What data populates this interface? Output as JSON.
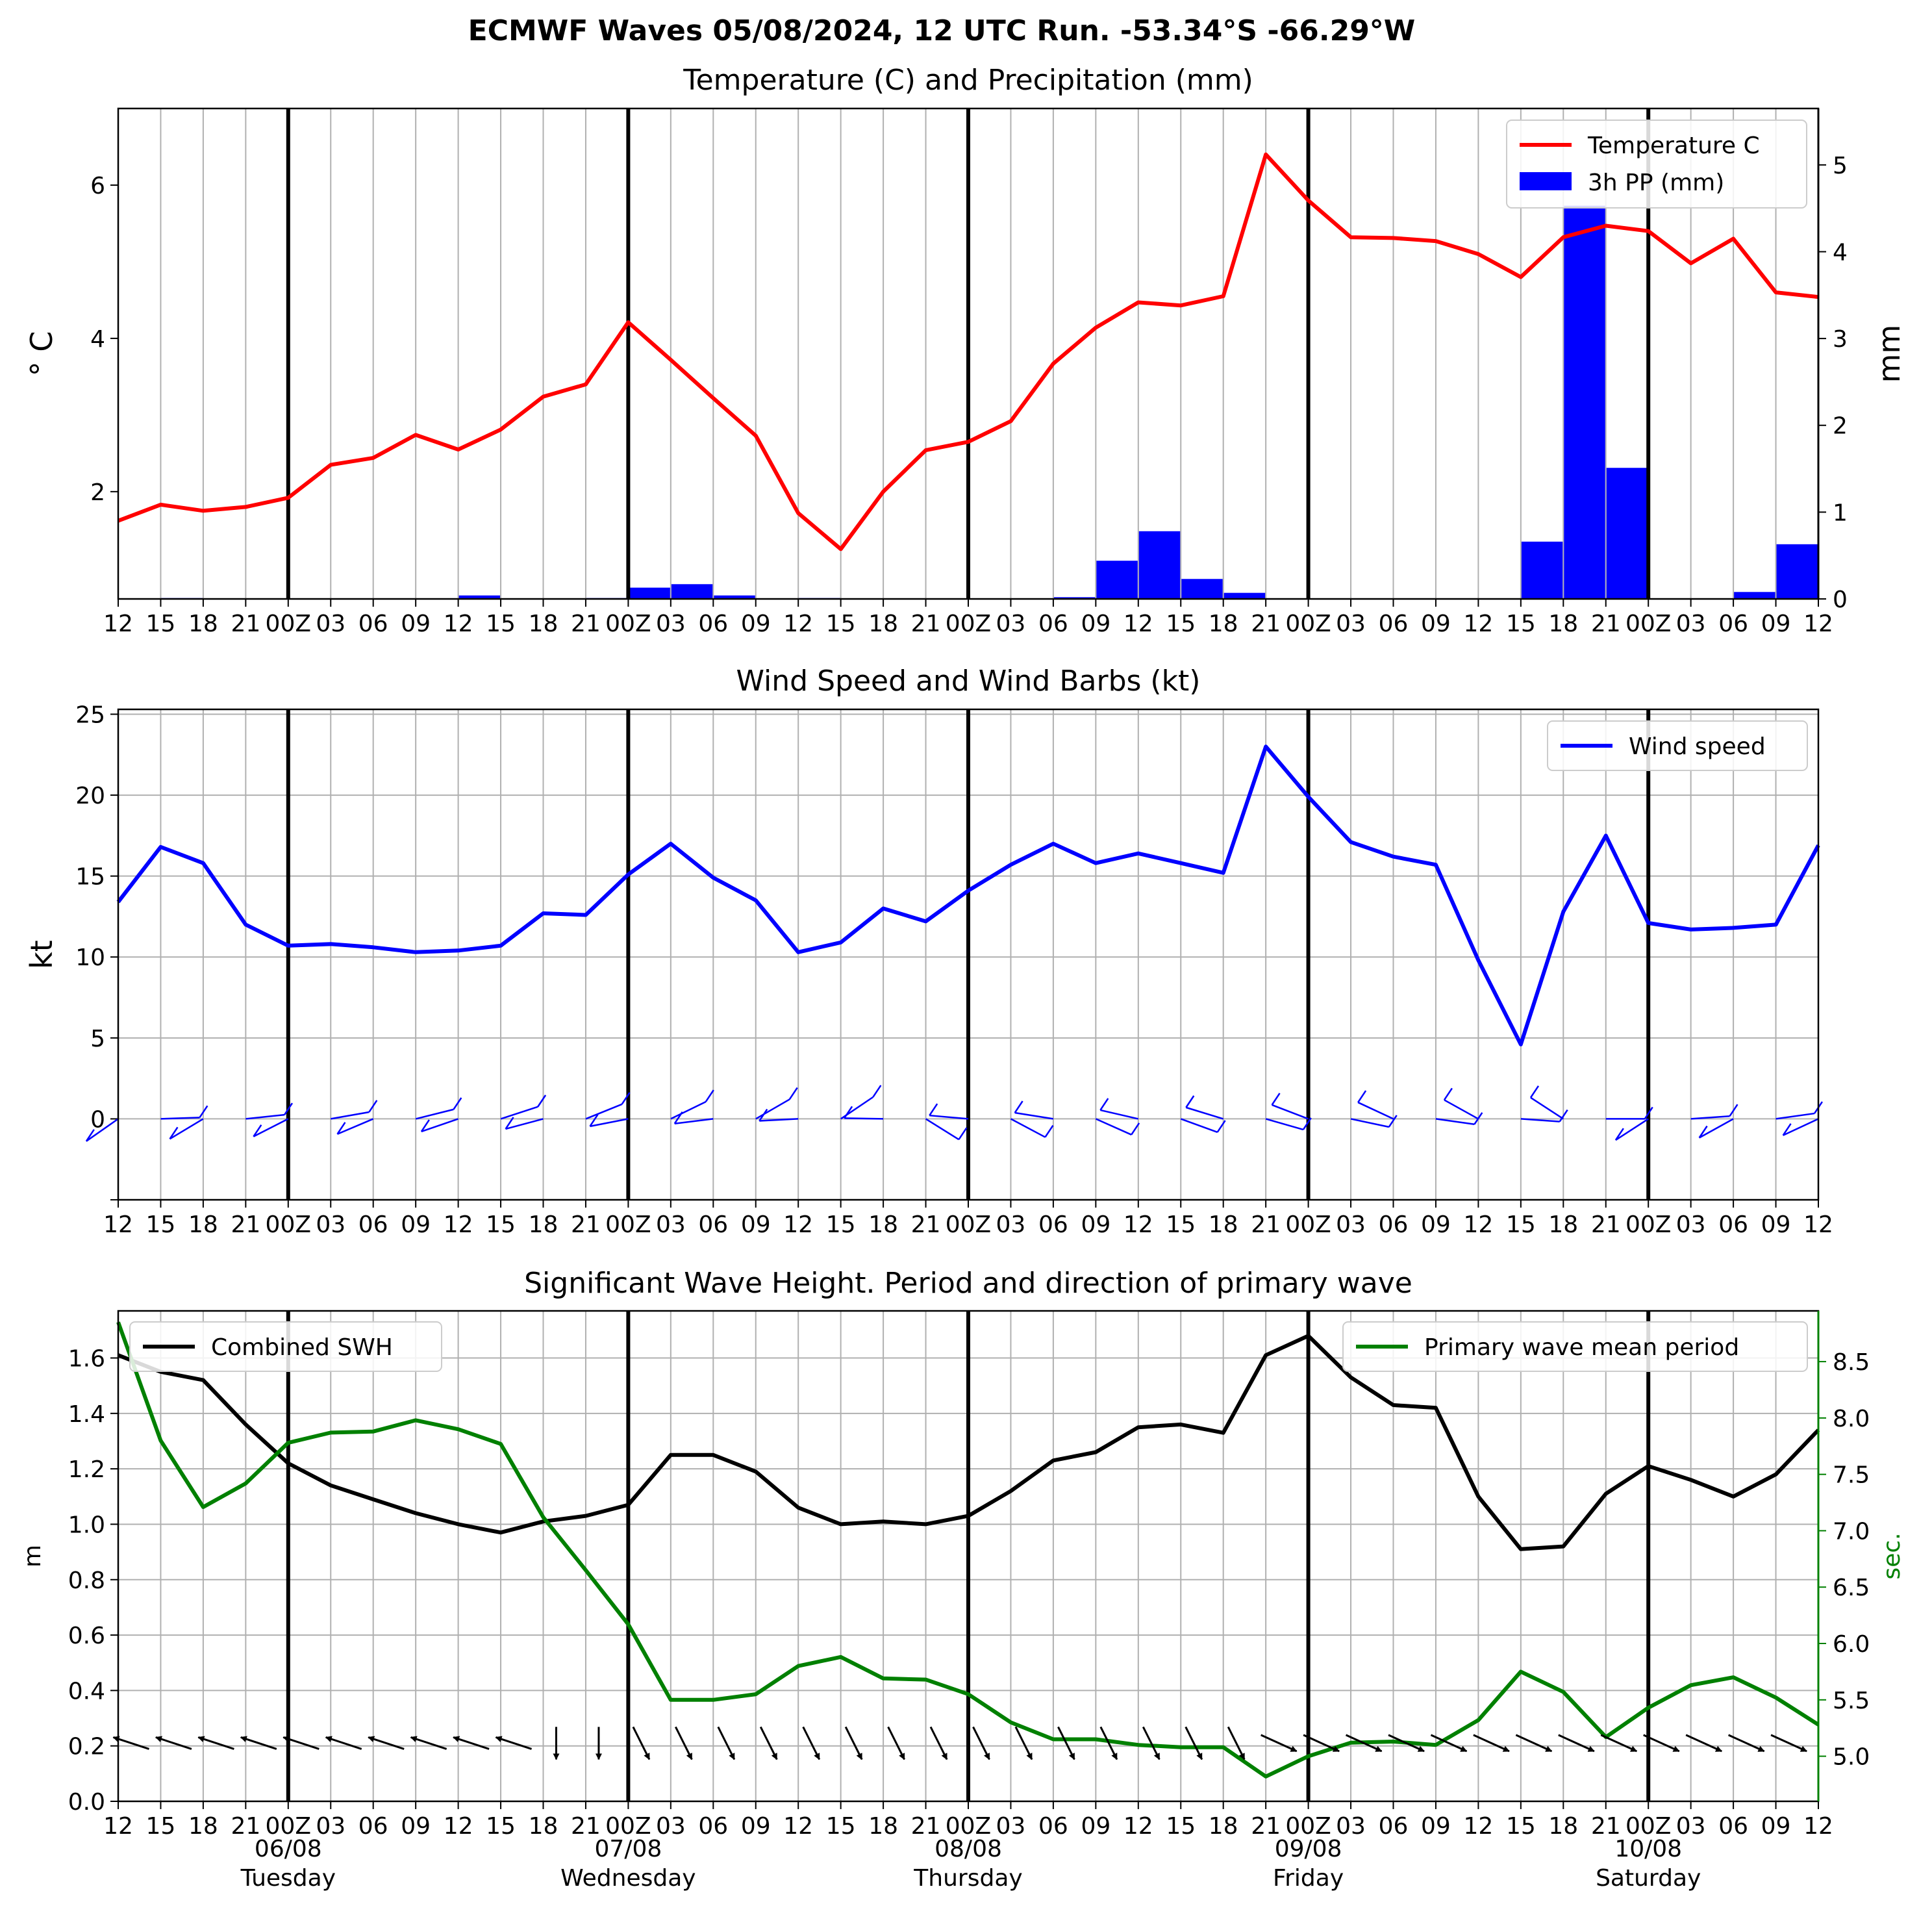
{
  "suptitle": "ECMWF Waves 05/08/2024, 12 UTC Run. -53.34°S -66.29°W",
  "x_tick_labels": [
    "12",
    "15",
    "18",
    "21",
    "00Z",
    "03",
    "06",
    "09",
    "12",
    "15",
    "18",
    "21",
    "00Z",
    "03",
    "06",
    "09",
    "12",
    "15",
    "18",
    "21",
    "00Z",
    "03",
    "06",
    "09",
    "12",
    "15",
    "18",
    "21",
    "00Z",
    "03",
    "06",
    "09",
    "12",
    "15",
    "18",
    "21",
    "00Z",
    "03",
    "06",
    "09",
    "12"
  ],
  "day_labels": [
    {
      "date": "06/08",
      "day": "Tuesday"
    },
    {
      "date": "07/08",
      "day": "Wednesday"
    },
    {
      "date": "08/08",
      "day": "Thursday"
    },
    {
      "date": "09/08",
      "day": "Friday"
    },
    {
      "date": "10/08",
      "day": "Saturday"
    }
  ],
  "colors": {
    "temperature": "#ff0000",
    "precip": "#0000ff",
    "wind": "#0000ff",
    "swh": "#000000",
    "period": "#008000",
    "grid": "#b0b0b0",
    "day_line": "#000000"
  },
  "chart_data": [
    {
      "type": "line",
      "title": "Temperature (C) and Precipitation (mm)",
      "ylabel": "° C",
      "ylabel_right": "mm",
      "x_step_hours": 3,
      "ylim": [
        0.6,
        7.0
      ],
      "yticks": [
        2,
        4,
        6
      ],
      "ylim_right": [
        0,
        5.65
      ],
      "yticks_right": [
        0,
        1,
        2,
        3,
        4,
        5
      ],
      "legend": "top-right",
      "series": [
        {
          "name": "Temperature C",
          "axis": "left",
          "kind": "line",
          "values": [
            1.62,
            1.83,
            1.75,
            1.8,
            1.92,
            2.35,
            2.44,
            2.74,
            2.55,
            2.81,
            3.24,
            3.4,
            4.21,
            3.72,
            3.22,
            2.73,
            1.72,
            1.25,
            2.0,
            2.54,
            2.65,
            2.92,
            3.67,
            4.14,
            4.47,
            4.43,
            4.55,
            6.4,
            5.8,
            5.32,
            5.31,
            5.27,
            5.1,
            4.8,
            5.32,
            5.47,
            5.4,
            4.98,
            5.3,
            4.6,
            4.54
          ]
        },
        {
          "name": "3h PP (mm)",
          "axis": "right",
          "kind": "bar",
          "values": [
            0,
            0.01,
            0,
            0,
            0,
            0,
            0,
            0,
            0.04,
            0,
            0,
            0.01,
            0.13,
            0.17,
            0.04,
            0,
            0.01,
            0,
            0,
            0,
            0,
            0,
            0.02,
            0.44,
            0.78,
            0.23,
            0.07,
            0,
            0,
            0,
            0,
            0,
            0,
            0.66,
            4.53,
            1.51,
            0,
            0,
            0.08,
            0.63
          ]
        }
      ]
    },
    {
      "type": "line",
      "title": "Wind Speed and Wind Barbs (kt)",
      "ylabel": "kt",
      "x_step_hours": 3,
      "ylim": [
        -5,
        25.3
      ],
      "yticks": [
        0,
        5,
        10,
        15,
        20,
        25
      ],
      "legend": "top-right",
      "series": [
        {
          "name": "Wind speed",
          "values": [
            13.4,
            16.8,
            15.8,
            12.0,
            10.7,
            10.8,
            10.6,
            10.3,
            10.4,
            10.7,
            12.7,
            12.6,
            15.1,
            17.0,
            14.9,
            13.5,
            10.3,
            10.9,
            13.0,
            12.2,
            14.1,
            15.7,
            17.0,
            15.8,
            16.4,
            15.8,
            15.2,
            23.0,
            19.9,
            17.1,
            16.2,
            15.7,
            9.8,
            4.6,
            12.8,
            17.5,
            12.1,
            11.7,
            11.8,
            12.0,
            16.9
          ]
        }
      ]
    },
    {
      "type": "line",
      "title": "Significant Wave Height. Period and direction of primary wave",
      "ylabel": "m",
      "ylabel_right": "sec.",
      "x_step_hours": 3,
      "ylim": [
        0.0,
        1.77
      ],
      "yticks": [
        0.0,
        0.2,
        0.4,
        0.6,
        0.8,
        1.0,
        1.2,
        1.4,
        1.6
      ],
      "ylim_right": [
        4.6,
        8.95
      ],
      "yticks_right": [
        5.0,
        5.5,
        6.0,
        6.5,
        7.0,
        7.5,
        8.0,
        8.5
      ],
      "series": [
        {
          "name": "Combined SWH",
          "axis": "left",
          "legend": "top-left",
          "values": [
            1.61,
            1.55,
            1.52,
            1.36,
            1.22,
            1.14,
            1.09,
            1.04,
            1.0,
            0.97,
            1.01,
            1.03,
            1.07,
            1.25,
            1.25,
            1.19,
            1.06,
            1.0,
            1.01,
            1.0,
            1.03,
            1.12,
            1.23,
            1.26,
            1.35,
            1.36,
            1.33,
            1.61,
            1.68,
            1.53,
            1.43,
            1.42,
            1.1,
            0.91,
            0.92,
            1.11,
            1.21,
            1.16,
            1.1,
            1.18,
            1.34
          ]
        },
        {
          "name": "Primary wave mean period",
          "axis": "right",
          "legend": "top-right",
          "values": [
            8.85,
            7.8,
            7.21,
            7.42,
            7.78,
            7.87,
            7.88,
            7.98,
            7.9,
            7.77,
            7.12,
            6.65,
            6.17,
            5.5,
            5.5,
            5.55,
            5.8,
            5.88,
            5.69,
            5.68,
            5.55,
            5.3,
            5.15,
            5.15,
            5.1,
            5.08,
            5.08,
            4.82,
            5.0,
            5.12,
            5.13,
            5.1,
            5.32,
            5.75,
            5.57,
            5.17,
            5.43,
            5.63,
            5.7,
            5.52,
            5.28
          ]
        }
      ],
      "wave_direction_arrows": true
    }
  ]
}
